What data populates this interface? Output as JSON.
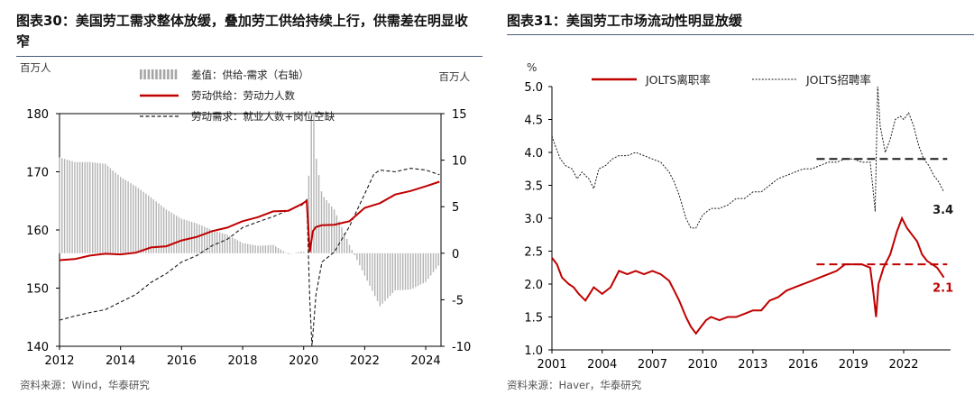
{
  "chart_data": [
    {
      "type": "line",
      "figure_label": "图表30：",
      "title": "美国劳工需求整体放缓，叠加劳工供给持续上行，供需差在明显收窄",
      "y_left_unit": "百万人",
      "y_right_unit": "百万人",
      "ylim_left": [
        140,
        180
      ],
      "ylim_right": [
        -10,
        15
      ],
      "yticks_left": [
        "140",
        "150",
        "160",
        "170",
        "180"
      ],
      "yticks_right": [
        "-10",
        "-5",
        "0",
        "5",
        "10",
        "15"
      ],
      "xlim": [
        2012,
        2024.5
      ],
      "xticks": [
        "2012",
        "2014",
        "2016",
        "2018",
        "2020",
        "2022",
        "2024"
      ],
      "legend": [
        {
          "label": "差值：供给-需求（右轴）",
          "style": "bar",
          "color": "#a6a6a6"
        },
        {
          "label": "劳动供给：劳动力人数",
          "style": "solid",
          "color": "#c00000"
        },
        {
          "label": "劳动需求：就业人数+岗位空缺",
          "style": "dashed",
          "color": "#1a1a1a"
        }
      ],
      "series": [
        {
          "name": "劳动供给：劳动力人数",
          "axis": "left",
          "x": [
            2012.0,
            2012.5,
            2013.0,
            2013.5,
            2014.0,
            2014.5,
            2015.0,
            2015.5,
            2016.0,
            2016.5,
            2017.0,
            2017.5,
            2018.0,
            2018.5,
            2019.0,
            2019.5,
            2019.95,
            2020.1,
            2020.2,
            2020.3,
            2020.4,
            2020.6,
            2021.0,
            2021.5,
            2022.0,
            2022.5,
            2023.0,
            2023.5,
            2024.0,
            2024.45
          ],
          "y": [
            154.8,
            155.0,
            155.6,
            155.9,
            155.8,
            156.1,
            157.0,
            157.2,
            158.2,
            158.8,
            159.8,
            160.4,
            161.5,
            162.2,
            163.2,
            163.3,
            164.5,
            165.0,
            156.2,
            159.8,
            160.5,
            160.8,
            160.9,
            161.5,
            163.8,
            164.6,
            166.1,
            166.7,
            167.5,
            168.3
          ]
        },
        {
          "name": "劳动需求：就业人数+岗位空缺",
          "axis": "left",
          "x": [
            2012.0,
            2012.5,
            2013.0,
            2013.5,
            2014.0,
            2014.5,
            2015.0,
            2015.5,
            2016.0,
            2016.5,
            2017.0,
            2017.5,
            2018.0,
            2018.5,
            2019.0,
            2019.5,
            2019.95,
            2020.1,
            2020.2,
            2020.27,
            2020.4,
            2020.6,
            2021.0,
            2021.5,
            2022.0,
            2022.3,
            2022.5,
            2023.0,
            2023.5,
            2024.0,
            2024.45
          ],
          "y": [
            144.5,
            145.2,
            145.8,
            146.3,
            147.6,
            148.9,
            151.0,
            152.5,
            154.5,
            155.6,
            157.3,
            158.4,
            160.4,
            161.4,
            162.3,
            163.4,
            164.3,
            165.2,
            148.0,
            140.0,
            148.8,
            154.5,
            156.2,
            160.6,
            166.2,
            169.6,
            170.3,
            170.0,
            170.6,
            170.3,
            169.5
          ]
        },
        {
          "name": "差值：供给-需求（右轴）",
          "axis": "right",
          "style": "bar",
          "x": [
            2012.0,
            2012.5,
            2013.0,
            2013.5,
            2014.0,
            2014.5,
            2015.0,
            2015.5,
            2016.0,
            2016.5,
            2017.0,
            2017.5,
            2018.0,
            2018.5,
            2019.0,
            2019.5,
            2019.95,
            2020.1,
            2020.2,
            2020.3,
            2020.4,
            2020.6,
            2021.0,
            2021.5,
            2022.0,
            2022.5,
            2023.0,
            2023.5,
            2024.0,
            2024.45
          ],
          "y": [
            10.3,
            9.8,
            9.8,
            9.6,
            8.2,
            7.2,
            6.0,
            4.7,
            3.7,
            3.2,
            2.5,
            2.0,
            1.1,
            0.8,
            0.9,
            -0.1,
            0.2,
            0.0,
            12.5,
            17.0,
            10.5,
            6.3,
            4.7,
            0.9,
            -2.4,
            -5.7,
            -4.0,
            -3.9,
            -3.1,
            -1.2
          ]
        }
      ],
      "source": "资料来源：Wind，华泰研究"
    },
    {
      "type": "line",
      "figure_label": "图表31：",
      "title": "美国劳工市场流动性明显放缓",
      "y_unit": "%",
      "ylim": [
        1.0,
        5.0
      ],
      "yticks": [
        "1.0",
        "1.5",
        "2.0",
        "2.5",
        "3.0",
        "3.5",
        "4.0",
        "4.5",
        "5.0"
      ],
      "xlim": [
        2001,
        2024.8
      ],
      "xticks": [
        "2001",
        "2004",
        "2007",
        "2010",
        "2013",
        "2016",
        "2019",
        "2022"
      ],
      "legend": [
        {
          "label": "JOLTS离职率",
          "style": "solid",
          "color": "#c00000"
        },
        {
          "label": "JOLTS招聘率",
          "style": "dashed",
          "color": "#1a1a1a"
        }
      ],
      "series": [
        {
          "name": "JOLTS离职率",
          "x": [
            2001.0,
            2001.3,
            2001.6,
            2002.0,
            2002.3,
            2002.6,
            2003.0,
            2003.5,
            2004.0,
            2004.5,
            2005.0,
            2005.5,
            2006.0,
            2006.5,
            2007.0,
            2007.5,
            2008.0,
            2008.3,
            2008.6,
            2009.0,
            2009.3,
            2009.6,
            2009.9,
            2010.2,
            2010.5,
            2011.0,
            2011.5,
            2012.0,
            2012.5,
            2013.0,
            2013.5,
            2014.0,
            2014.5,
            2015.0,
            2015.5,
            2016.0,
            2016.5,
            2017.0,
            2017.5,
            2018.0,
            2018.5,
            2019.0,
            2019.5,
            2020.0,
            2020.2,
            2020.35,
            2020.5,
            2020.8,
            2021.2,
            2021.6,
            2021.9,
            2022.2,
            2022.5,
            2022.8,
            2023.1,
            2023.4,
            2023.7,
            2024.0,
            2024.4
          ],
          "y": [
            2.4,
            2.3,
            2.1,
            2.0,
            1.95,
            1.85,
            1.75,
            1.95,
            1.85,
            1.95,
            2.2,
            2.15,
            2.2,
            2.15,
            2.2,
            2.15,
            2.05,
            1.9,
            1.75,
            1.5,
            1.35,
            1.25,
            1.35,
            1.45,
            1.5,
            1.45,
            1.5,
            1.5,
            1.55,
            1.6,
            1.6,
            1.75,
            1.8,
            1.9,
            1.95,
            2.0,
            2.05,
            2.1,
            2.15,
            2.2,
            2.3,
            2.3,
            2.3,
            2.25,
            1.85,
            1.5,
            2.0,
            2.25,
            2.45,
            2.8,
            3.0,
            2.85,
            2.75,
            2.65,
            2.45,
            2.35,
            2.3,
            2.25,
            2.1
          ]
        },
        {
          "name": "JOLTS招聘率",
          "x": [
            2001.0,
            2001.2,
            2001.5,
            2001.8,
            2002.2,
            2002.5,
            2002.8,
            2003.2,
            2003.5,
            2003.8,
            2004.2,
            2004.6,
            2005.0,
            2005.5,
            2006.0,
            2006.5,
            2007.0,
            2007.5,
            2008.0,
            2008.3,
            2008.6,
            2009.0,
            2009.3,
            2009.6,
            2010.0,
            2010.5,
            2011.0,
            2011.5,
            2012.0,
            2012.5,
            2013.0,
            2013.5,
            2014.0,
            2014.5,
            2015.0,
            2015.5,
            2016.0,
            2016.5,
            2017.0,
            2017.5,
            2018.0,
            2018.5,
            2019.0,
            2019.5,
            2020.0,
            2020.15,
            2020.3,
            2020.45,
            2020.6,
            2020.9,
            2021.2,
            2021.5,
            2021.8,
            2022.0,
            2022.3,
            2022.6,
            2022.9,
            2023.2,
            2023.5,
            2023.8,
            2024.1,
            2024.4
          ],
          "y": [
            4.25,
            4.1,
            3.9,
            3.8,
            3.75,
            3.6,
            3.7,
            3.6,
            3.45,
            3.75,
            3.8,
            3.9,
            3.95,
            3.95,
            4.0,
            3.95,
            3.9,
            3.85,
            3.7,
            3.55,
            3.35,
            3.0,
            2.85,
            2.85,
            3.05,
            3.15,
            3.15,
            3.2,
            3.3,
            3.3,
            3.4,
            3.4,
            3.5,
            3.6,
            3.65,
            3.7,
            3.75,
            3.75,
            3.8,
            3.85,
            3.85,
            3.9,
            3.9,
            3.85,
            3.85,
            3.5,
            3.1,
            5.0,
            4.4,
            4.0,
            4.2,
            4.5,
            4.55,
            4.5,
            4.6,
            4.4,
            4.1,
            3.9,
            3.8,
            3.65,
            3.55,
            3.4
          ]
        }
      ],
      "reference_lines": [
        {
          "series": "JOLTS离职率",
          "value": 2.3,
          "color": "#c00000",
          "x_start": 2016.8,
          "x_end": 2024.6
        },
        {
          "series": "JOLTS招聘率",
          "value": 3.9,
          "color": "#1a1a1a",
          "x_start": 2016.8,
          "x_end": 2024.6
        }
      ],
      "annotations": [
        {
          "text": "3.4",
          "series": "JOLTS招聘率",
          "color": "#1a1a1a"
        },
        {
          "text": "2.1",
          "series": "JOLTS离职率",
          "color": "#c00000"
        }
      ],
      "source": "资料来源：Haver，华泰研究"
    }
  ]
}
